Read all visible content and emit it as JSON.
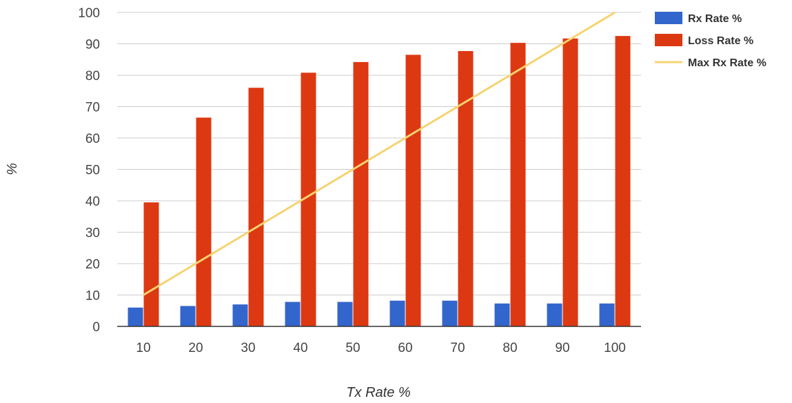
{
  "chart_data": {
    "type": "bar",
    "xlabel": "Tx Rate %",
    "ylabel": "%",
    "ylim": [
      0,
      100
    ],
    "yticks": [
      0,
      10,
      20,
      30,
      40,
      50,
      60,
      70,
      80,
      90,
      100
    ],
    "grid": true,
    "legend_position": "right",
    "categories": [
      "10",
      "20",
      "30",
      "40",
      "50",
      "60",
      "70",
      "80",
      "90",
      "100"
    ],
    "series": [
      {
        "name": "Rx Rate %",
        "type": "bar",
        "color": "#3366cc",
        "values": [
          6,
          6.5,
          7,
          7.8,
          7.8,
          8.2,
          8.2,
          7.3,
          7.3,
          7.3
        ]
      },
      {
        "name": "Loss Rate %",
        "type": "bar",
        "color": "#dc3912",
        "values": [
          39.5,
          66.5,
          76,
          80.8,
          84.2,
          86.5,
          87.7,
          90.3,
          91.7,
          92.5
        ]
      },
      {
        "name": "Max Rx Rate %",
        "type": "line",
        "color": "#f6d36f",
        "values": [
          10,
          20,
          30,
          40,
          50,
          60,
          70,
          80,
          90,
          100
        ]
      }
    ]
  }
}
